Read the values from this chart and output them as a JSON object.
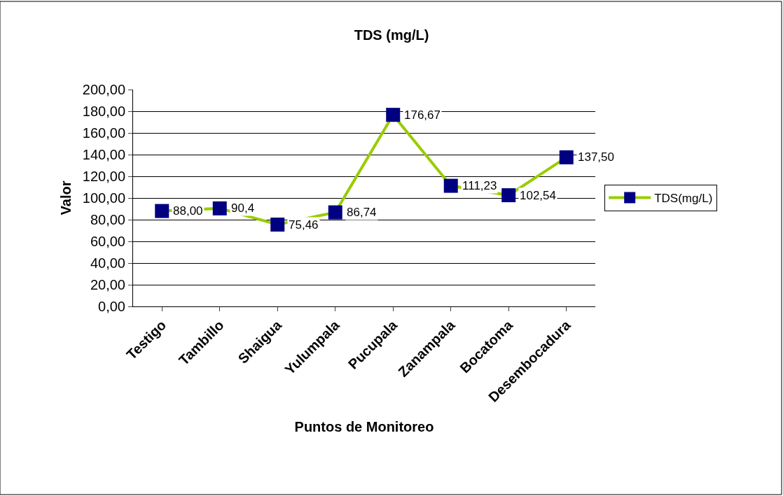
{
  "chart_data": {
    "type": "line",
    "title": "TDS (mg/L)",
    "xlabel": "Puntos de Monitoreo",
    "ylabel": "Valor",
    "categories": [
      "Testigo",
      "Tambillo",
      "Shaigua",
      "Yulumpala",
      "Pucupala",
      "Zanampala",
      "Bocatoma",
      "Desembocadura"
    ],
    "series": [
      {
        "name": "TDS(mg/L)",
        "color": "#99cc00",
        "colors": [
          "#000080",
          "#000080",
          "#000080",
          "#000080",
          "#000080",
          "#000080",
          "#000080",
          "#000080"
        ],
        "values": [
          88.0,
          90.4,
          75.46,
          86.74,
          176.67,
          111.23,
          102.54,
          137.5
        ],
        "value_labels": [
          "88,00",
          "90,4",
          "75,46",
          "86,74",
          "176,67",
          "111,23",
          "102,54",
          "137,50"
        ]
      }
    ],
    "ylim": [
      0,
      200
    ],
    "yticks": [
      {
        "value": 0,
        "label": "0,00"
      },
      {
        "value": 20,
        "label": "20,00"
      },
      {
        "value": 40,
        "label": "40,00"
      },
      {
        "value": 60,
        "label": "60,00"
      },
      {
        "value": 80,
        "label": "80,00"
      },
      {
        "value": 100,
        "label": "100,00"
      },
      {
        "value": 120,
        "label": "120,00"
      },
      {
        "value": 140,
        "label": "140,00"
      },
      {
        "value": 160,
        "label": "160,00"
      },
      {
        "value": 180,
        "label": "180,00"
      },
      {
        "value": 200,
        "label": "200,00"
      }
    ],
    "grid": "y",
    "legend": "right",
    "marker": "square",
    "line_style": "solid"
  }
}
